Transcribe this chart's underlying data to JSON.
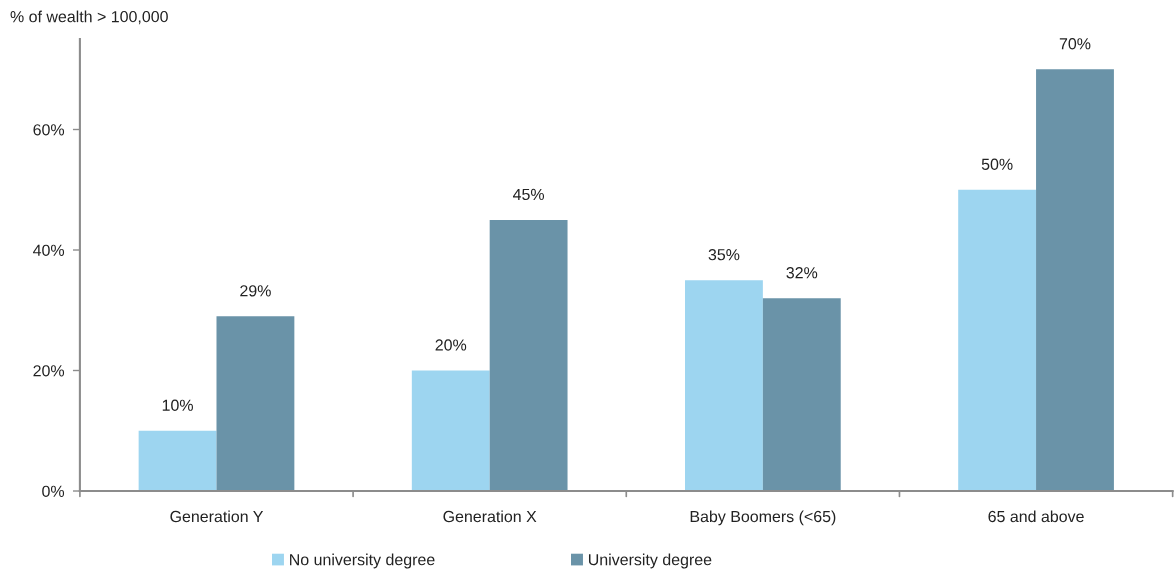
{
  "chart_data": {
    "type": "bar",
    "ylabel": "% of wealth > 100,000",
    "categories": [
      "Generation Y",
      "Generation X",
      "Baby Boomers (<65)",
      "65 and above"
    ],
    "series": [
      {
        "name": "No university degree",
        "color": "#9dd5f0",
        "values": [
          10,
          20,
          35,
          50
        ],
        "value_labels": [
          "10%",
          "20%",
          "35%",
          "50%"
        ]
      },
      {
        "name": "University degree",
        "color": "#6a93a8",
        "values": [
          29,
          45,
          32,
          70
        ],
        "value_labels": [
          "29%",
          "45%",
          "32%",
          "70%"
        ]
      }
    ],
    "ylim": [
      0,
      75
    ],
    "yticks": [
      {
        "value": 0,
        "label": "0%"
      },
      {
        "value": 20,
        "label": "20%"
      },
      {
        "value": 40,
        "label": "40%"
      },
      {
        "value": 60,
        "label": "60%"
      }
    ],
    "legend": "bottom"
  }
}
